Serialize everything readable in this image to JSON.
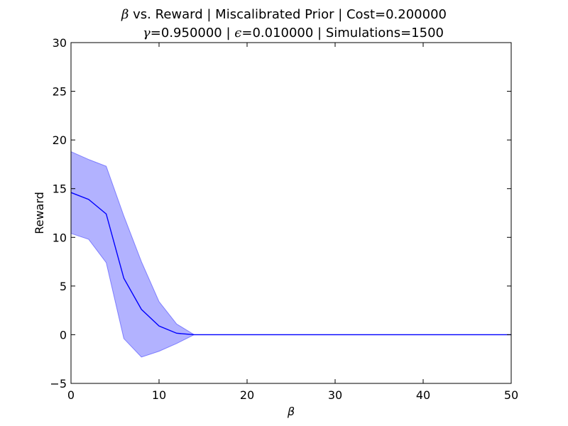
{
  "chart_data": {
    "type": "line",
    "title": {
      "line1": {
        "symbol": "β",
        "text": " vs. Reward | Miscalibrated Prior | Cost=0.200000"
      },
      "line2": {
        "symbol_gamma": "γ",
        "gamma_text": "=0.950000 | ",
        "symbol_eps": "ϵ",
        "eps_text": "=0.010000 | Simulations=1500"
      }
    },
    "xlabel": "β",
    "ylabel": "Reward",
    "xlim": [
      0,
      50
    ],
    "ylim": [
      -5,
      30
    ],
    "xticks": [
      0,
      10,
      20,
      30,
      40,
      50
    ],
    "yticks": [
      -5,
      0,
      5,
      10,
      15,
      20,
      25,
      30
    ],
    "xtick_labels": [
      "0",
      "10",
      "20",
      "30",
      "40",
      "50"
    ],
    "ytick_labels": [
      "−5",
      "0",
      "5",
      "10",
      "15",
      "20",
      "25",
      "30"
    ],
    "grid": false,
    "line_color": "#0000ff",
    "band_color": "#0000ff",
    "band_opacity": 0.3,
    "series": [
      {
        "x": [
          0,
          2,
          4,
          6,
          8,
          10,
          12,
          14,
          16,
          18,
          20,
          22,
          24,
          26,
          28,
          30,
          32,
          34,
          36,
          38,
          40,
          42,
          44,
          46,
          48,
          50
        ],
        "mean": [
          14.6,
          13.9,
          12.4,
          5.8,
          2.6,
          0.9,
          0.15,
          0.0,
          0.0,
          0.0,
          0.0,
          0.0,
          0.0,
          0.0,
          0.0,
          0.0,
          0.0,
          0.0,
          0.0,
          0.0,
          0.0,
          0.0,
          0.0,
          0.0,
          0.0,
          0.0
        ],
        "upper": [
          18.8,
          18.0,
          17.3,
          12.2,
          7.5,
          3.4,
          1.1,
          0.0,
          0.0,
          0.0,
          0.0,
          0.0,
          0.0,
          0.0,
          0.0,
          0.0,
          0.0,
          0.0,
          0.0,
          0.0,
          0.0,
          0.0,
          0.0,
          0.0,
          0.0,
          0.0
        ],
        "lower": [
          10.4,
          9.8,
          7.4,
          -0.4,
          -2.3,
          -1.7,
          -0.9,
          0.0,
          0.0,
          0.0,
          0.0,
          0.0,
          0.0,
          0.0,
          0.0,
          0.0,
          0.0,
          0.0,
          0.0,
          0.0,
          0.0,
          0.0,
          0.0,
          0.0,
          0.0,
          0.0
        ]
      }
    ]
  }
}
